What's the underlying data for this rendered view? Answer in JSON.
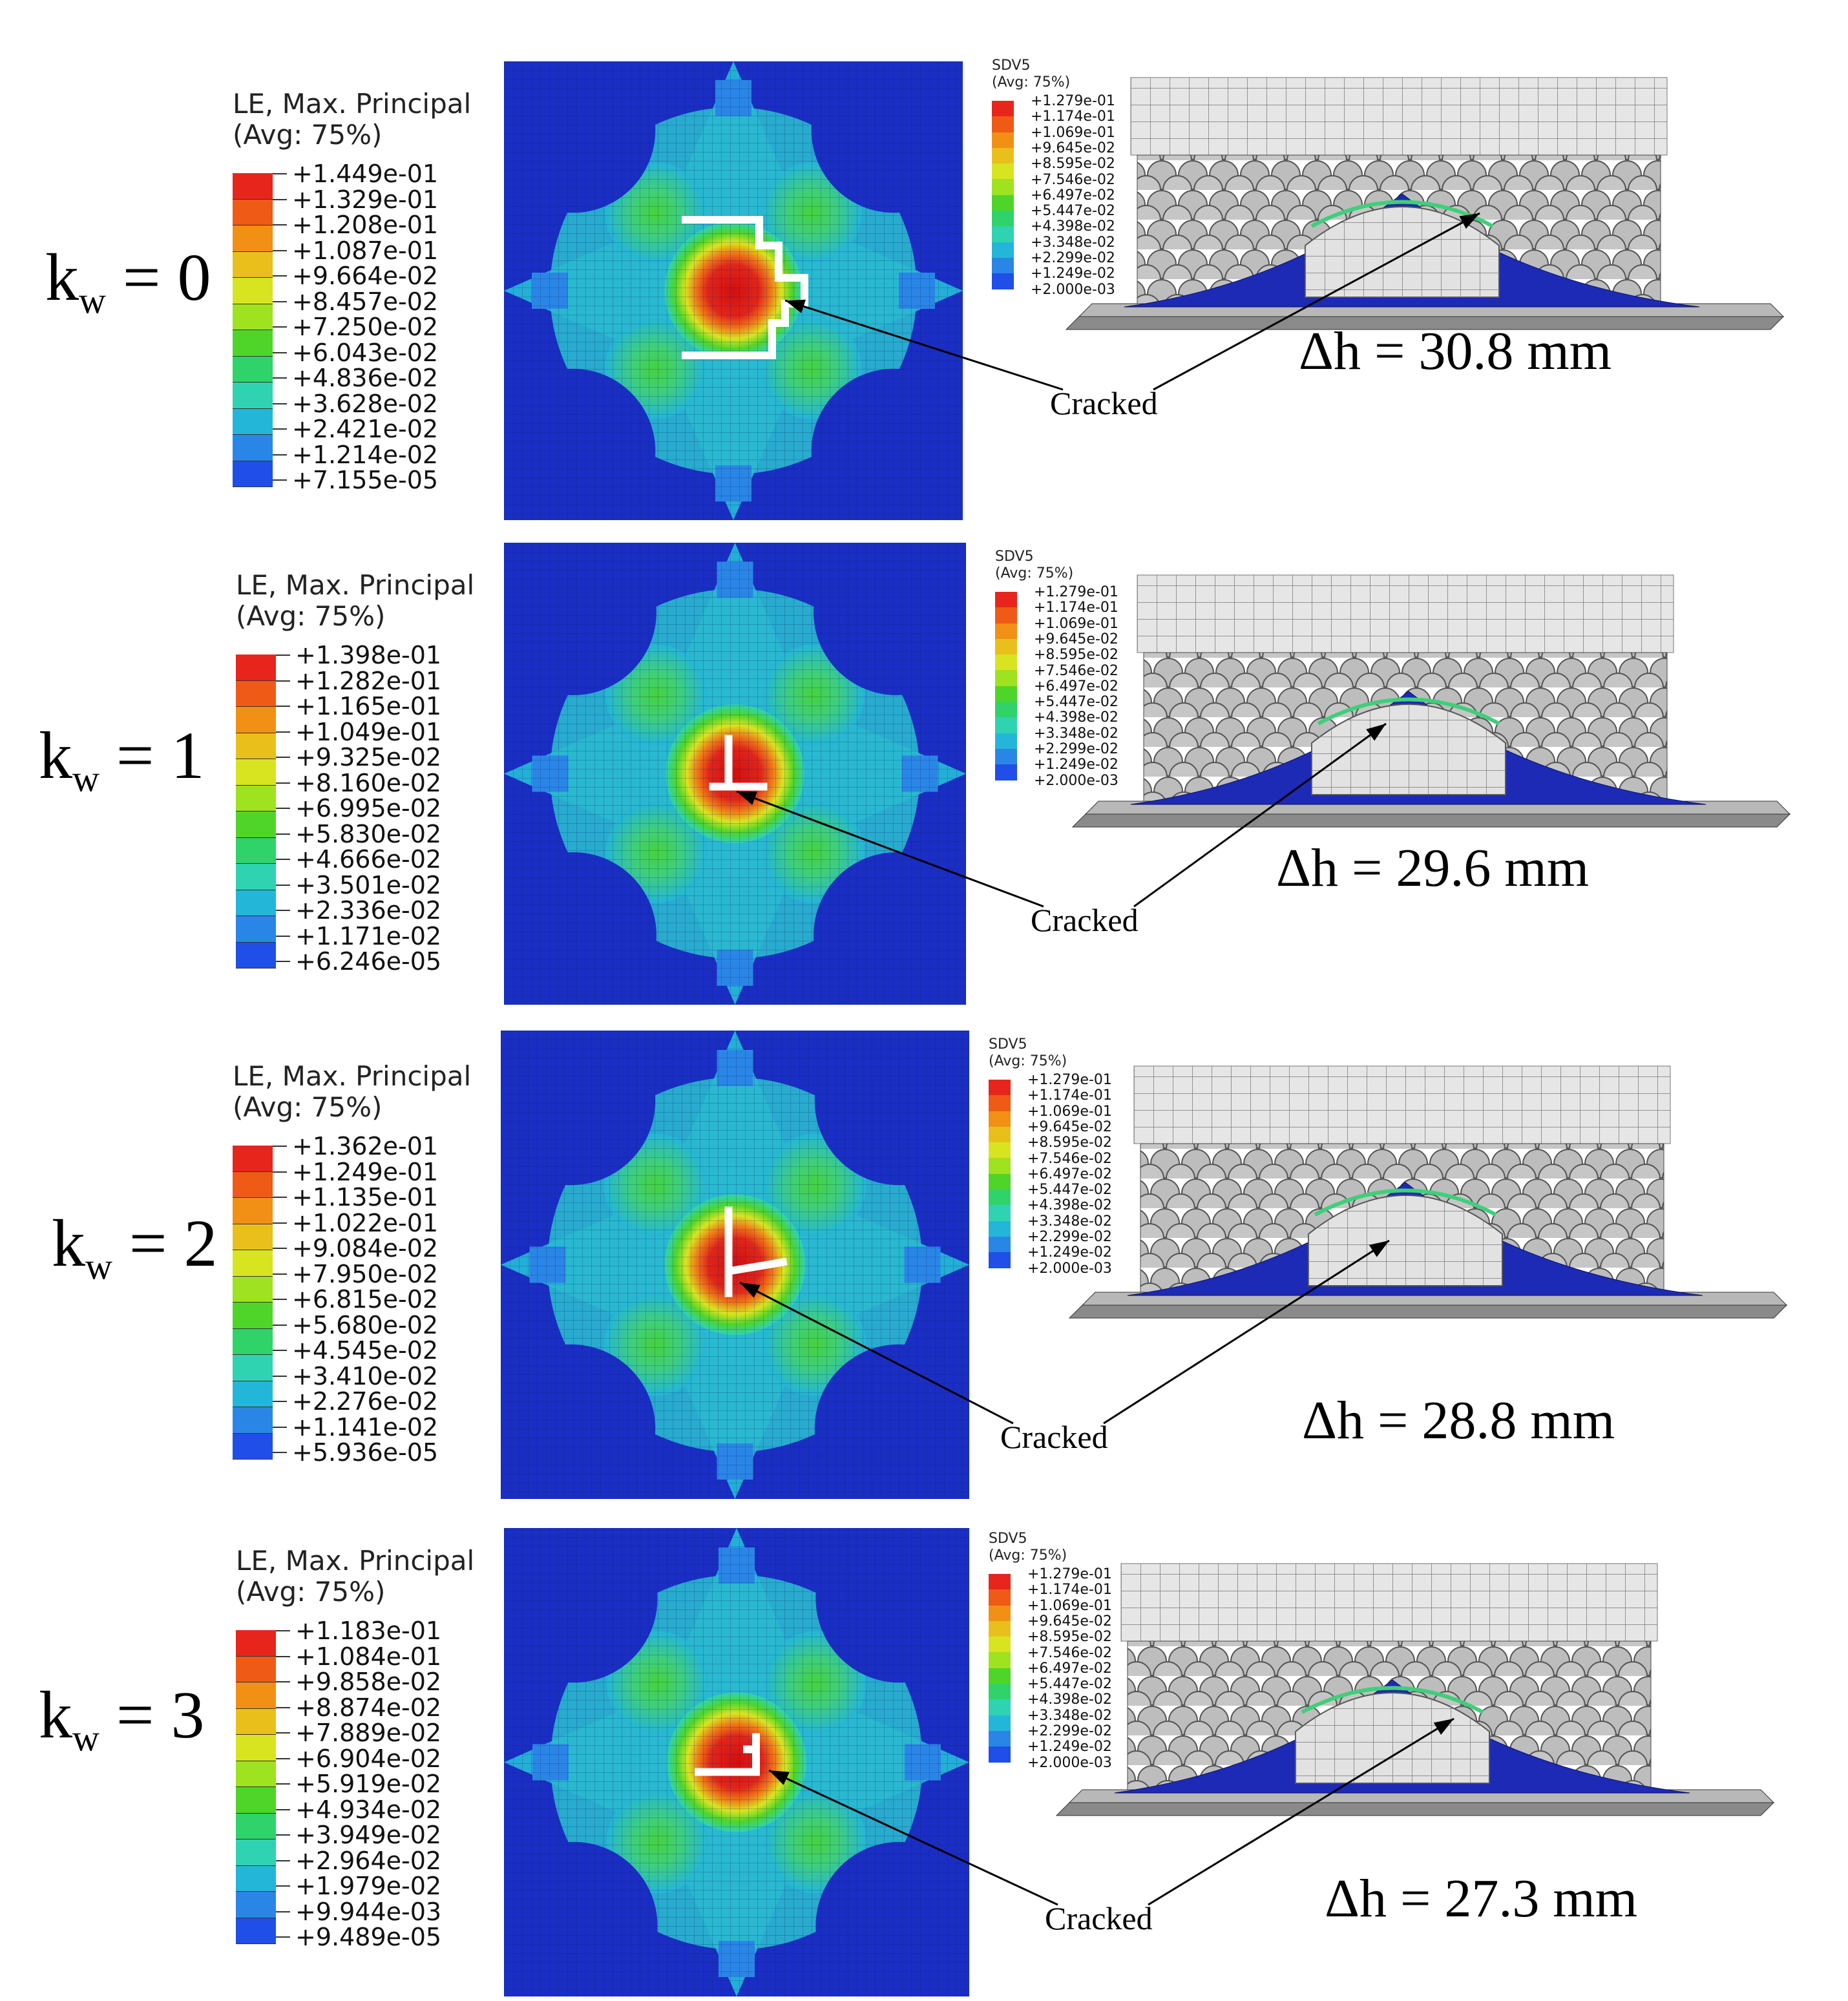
{
  "rows": [
    {
      "kw": "k",
      "kw_sub": "w",
      "kw_eq": " = 0",
      "legend_title_1": "LE, Max. Principal",
      "legend_title_2": "(Avg: 75%)",
      "legend_values": [
        "+1.449e-01",
        "+1.329e-01",
        "+1.208e-01",
        "+1.087e-01",
        "+9.664e-02",
        "+8.457e-02",
        "+7.250e-02",
        "+6.043e-02",
        "+4.836e-02",
        "+3.628e-02",
        "+2.421e-02",
        "+1.214e-02",
        "+7.155e-05"
      ],
      "sdv_title_1": "SDV5",
      "sdv_title_2": "(Avg: 75%)",
      "sdv_values": [
        "+1.279e-01",
        "+1.174e-01",
        "+1.069e-01",
        "+9.645e-02",
        "+8.595e-02",
        "+7.546e-02",
        "+6.497e-02",
        "+5.447e-02",
        "+4.398e-02",
        "+3.348e-02",
        "+2.299e-02",
        "+1.249e-02",
        "+2.000e-03"
      ],
      "dh": "Δh = 30.8 mm",
      "cracked": "Cracked"
    },
    {
      "kw": "k",
      "kw_sub": "w",
      "kw_eq": " = 1",
      "legend_title_1": "LE, Max. Principal",
      "legend_title_2": "(Avg: 75%)",
      "legend_values": [
        "+1.398e-01",
        "+1.282e-01",
        "+1.165e-01",
        "+1.049e-01",
        "+9.325e-02",
        "+8.160e-02",
        "+6.995e-02",
        "+5.830e-02",
        "+4.666e-02",
        "+3.501e-02",
        "+2.336e-02",
        "+1.171e-02",
        "+6.246e-05"
      ],
      "sdv_title_1": "SDV5",
      "sdv_title_2": "(Avg: 75%)",
      "sdv_values": [
        "+1.279e-01",
        "+1.174e-01",
        "+1.069e-01",
        "+9.645e-02",
        "+8.595e-02",
        "+7.546e-02",
        "+6.497e-02",
        "+5.447e-02",
        "+4.398e-02",
        "+3.348e-02",
        "+2.299e-02",
        "+1.249e-02",
        "+2.000e-03"
      ],
      "dh": "Δh = 29.6 mm",
      "cracked": "Cracked"
    },
    {
      "kw": "k",
      "kw_sub": "w",
      "kw_eq": " = 2",
      "legend_title_1": "LE, Max. Principal",
      "legend_title_2": "(Avg: 75%)",
      "legend_values": [
        "+1.362e-01",
        "+1.249e-01",
        "+1.135e-01",
        "+1.022e-01",
        "+9.084e-02",
        "+7.950e-02",
        "+6.815e-02",
        "+5.680e-02",
        "+4.545e-02",
        "+3.410e-02",
        "+2.276e-02",
        "+1.141e-02",
        "+5.936e-05"
      ],
      "sdv_title_1": "SDV5",
      "sdv_title_2": "(Avg: 75%)",
      "sdv_values": [
        "+1.279e-01",
        "+1.174e-01",
        "+1.069e-01",
        "+9.645e-02",
        "+8.595e-02",
        "+7.546e-02",
        "+6.497e-02",
        "+5.447e-02",
        "+4.398e-02",
        "+3.348e-02",
        "+2.299e-02",
        "+1.249e-02",
        "+2.000e-03"
      ],
      "dh": "Δh = 28.8 mm",
      "cracked": "Cracked"
    },
    {
      "kw": "k",
      "kw_sub": "w",
      "kw_eq": " = 3",
      "legend_title_1": "LE, Max. Principal",
      "legend_title_2": "(Avg: 75%)",
      "legend_values": [
        "+1.183e-01",
        "+1.084e-01",
        "+9.858e-02",
        "+8.874e-02",
        "+7.889e-02",
        "+6.904e-02",
        "+5.919e-02",
        "+4.934e-02",
        "+3.949e-02",
        "+2.964e-02",
        "+1.979e-02",
        "+9.944e-03",
        "+9.489e-05"
      ],
      "sdv_title_1": "SDV5",
      "sdv_title_2": "(Avg: 75%)",
      "sdv_values": [
        "+1.279e-01",
        "+1.174e-01",
        "+1.069e-01",
        "+9.645e-02",
        "+8.595e-02",
        "+7.546e-02",
        "+6.497e-02",
        "+5.447e-02",
        "+4.398e-02",
        "+3.348e-02",
        "+2.299e-02",
        "+1.249e-02",
        "+2.000e-03"
      ],
      "dh": "Δh = 27.3 mm",
      "cracked": "Cracked"
    }
  ],
  "colors": {
    "rainbow": [
      "#e8251c",
      "#ef5a16",
      "#f29016",
      "#e9c01b",
      "#d9e421",
      "#9fe21f",
      "#4fd52a",
      "#2fd36a",
      "#2fd3b2",
      "#24b6d8",
      "#2a86e6",
      "#1f4ee8",
      "#1a16d8"
    ],
    "background_blue": "#1a2ec4",
    "mesh_gray": "#cfcfcf"
  }
}
